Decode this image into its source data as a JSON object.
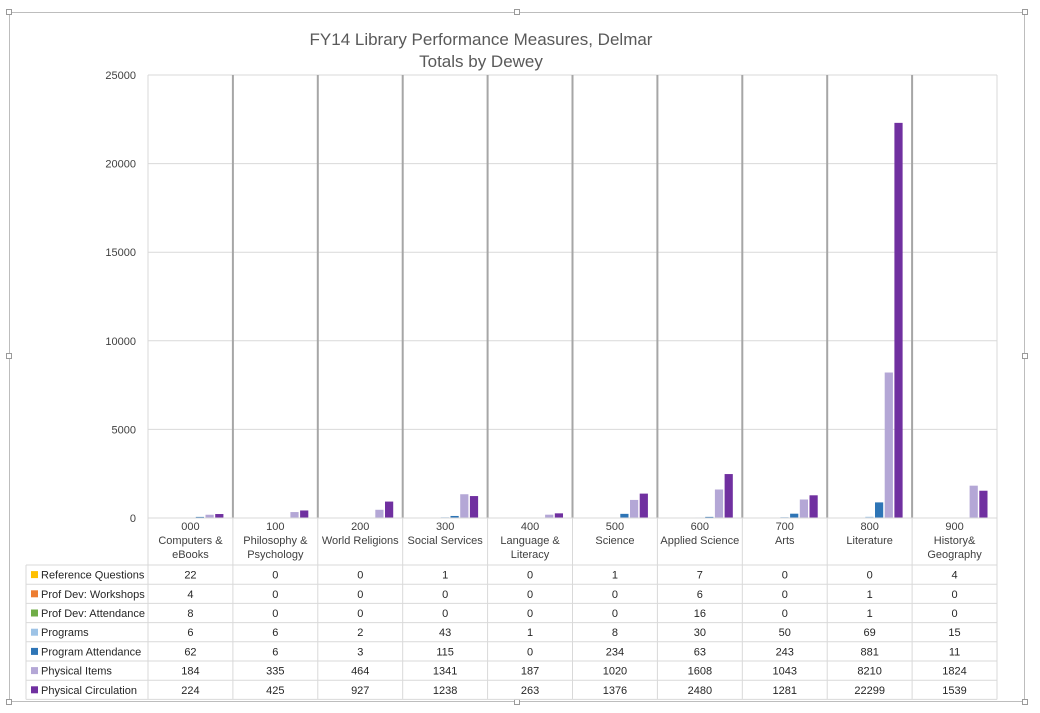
{
  "chart_data": {
    "type": "bar",
    "title": [
      "FY14 Library Performance Measures, Delmar",
      "Totals by Dewey"
    ],
    "xlabel": "",
    "ylabel": "",
    "ylim": [
      0,
      25000
    ],
    "yticks": [
      0,
      5000,
      10000,
      15000,
      20000,
      25000
    ],
    "grid": true,
    "legend": "data-table-left",
    "categories": [
      [
        "000",
        "Computers &",
        "eBooks"
      ],
      [
        "100",
        "Philosophy &",
        "Psychology"
      ],
      [
        "200",
        "World Religions"
      ],
      [
        "300",
        "Social Services"
      ],
      [
        "400",
        "Language &",
        "Literacy"
      ],
      [
        "500",
        "Science"
      ],
      [
        "600",
        "Applied Science"
      ],
      [
        "700",
        "Arts"
      ],
      [
        "800",
        "Literature"
      ],
      [
        "900",
        "History&",
        "Geography"
      ]
    ],
    "series": [
      {
        "name": "Reference Questions",
        "color": "#FFC000",
        "values": [
          22,
          0,
          0,
          1,
          0,
          1,
          7,
          0,
          0,
          4
        ]
      },
      {
        "name": "Prof Dev: Workshops",
        "color": "#ED7D31",
        "values": [
          4,
          0,
          0,
          0,
          0,
          0,
          6,
          0,
          1,
          0
        ]
      },
      {
        "name": "Prof Dev: Attendance",
        "color": "#70AD47",
        "values": [
          8,
          0,
          0,
          0,
          0,
          0,
          16,
          0,
          1,
          0
        ]
      },
      {
        "name": "Programs",
        "color": "#9DC3E6",
        "values": [
          6,
          6,
          2,
          43,
          1,
          8,
          30,
          50,
          69,
          15
        ]
      },
      {
        "name": "Program Attendance",
        "color": "#2E75B6",
        "values": [
          62,
          6,
          3,
          115,
          0,
          234,
          63,
          243,
          881,
          11
        ]
      },
      {
        "name": "Physical Items",
        "color": "#B4A7D6",
        "values": [
          184,
          335,
          464,
          1341,
          187,
          1020,
          1608,
          1043,
          8210,
          1824
        ]
      },
      {
        "name": "Physical Circulation",
        "color": "#7030A0",
        "values": [
          224,
          425,
          927,
          1238,
          263,
          1376,
          2480,
          1281,
          22299,
          1539
        ]
      }
    ]
  }
}
